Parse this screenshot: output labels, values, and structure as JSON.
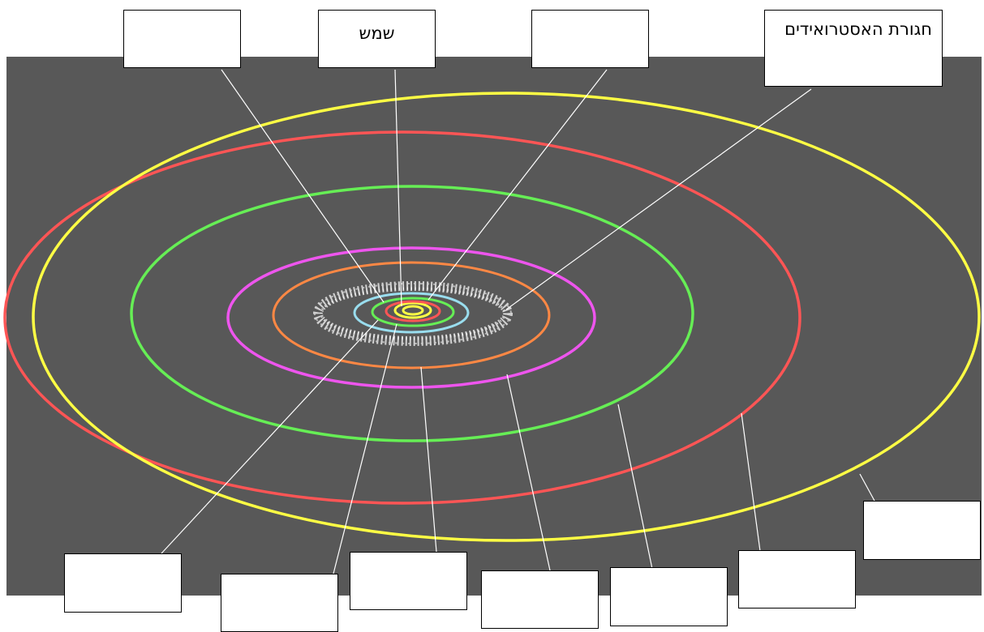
{
  "labels": {
    "sun": "שמש",
    "asteroid_belt": "חגורת האסטרואידים"
  },
  "colors": {
    "background": "#585858",
    "pointer_lines": "#ffffff",
    "label_border": "#000000",
    "asteroid_belt": "#e8e8e8",
    "sun_orbit_core": "#ffff44",
    "orbit_1": "#ffff44",
    "orbit_2": "#ff5555",
    "orbit_3": "#66ee55",
    "orbit_4": "#99ddee",
    "orbit_5": "#ff8844",
    "orbit_6": "#ee55ee",
    "orbit_7": "#66ee55",
    "orbit_8": "#ff5555",
    "orbit_9": "#ffff44"
  }
}
